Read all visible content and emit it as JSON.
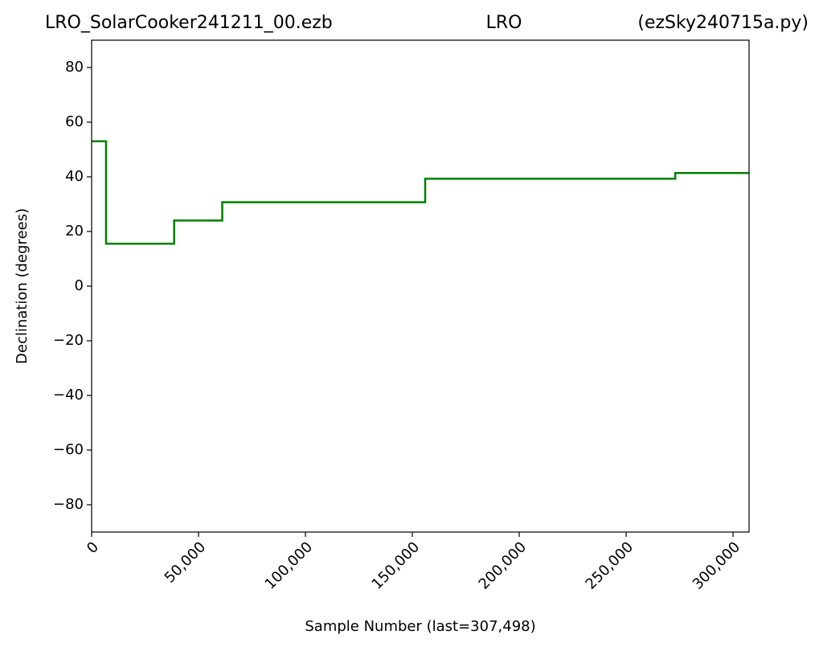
{
  "chart_data": {
    "type": "line",
    "titles": [
      "LRO_SolarCooker241211_00.ezb",
      "LRO",
      "(ezSky240715a.py)"
    ],
    "xlabel": "Sample Number (last=307,498)",
    "ylabel": "Declination (degrees)",
    "x": [
      0,
      6750,
      6750,
      38600,
      38600,
      61100,
      61100,
      156000,
      156000,
      273000,
      273000,
      307498
    ],
    "series": [
      {
        "name": "Declination",
        "color": "#008000",
        "values": [
          53,
          53,
          15.5,
          15.5,
          24,
          24,
          30.7,
          30.7,
          39.3,
          39.3,
          41.4,
          41.4
        ]
      }
    ],
    "xlim": [
      0,
      307498
    ],
    "ylim": [
      -90,
      90
    ],
    "xticks": [
      0,
      {
        "value": 50000,
        "label": "50,000"
      },
      {
        "value": 100000,
        "label": "100,000"
      },
      {
        "value": 150000,
        "label": "150,000"
      },
      {
        "value": 200000,
        "label": "200,000"
      },
      {
        "value": 250000,
        "label": "250,000"
      },
      {
        "value": 300000,
        "label": "300,000"
      }
    ],
    "yticks": [
      {
        "value": -80,
        "label": "−80"
      },
      {
        "value": -60,
        "label": "−60"
      },
      {
        "value": -40,
        "label": "−40"
      },
      {
        "value": -20,
        "label": "−20"
      },
      0,
      20,
      40,
      60,
      80
    ]
  }
}
